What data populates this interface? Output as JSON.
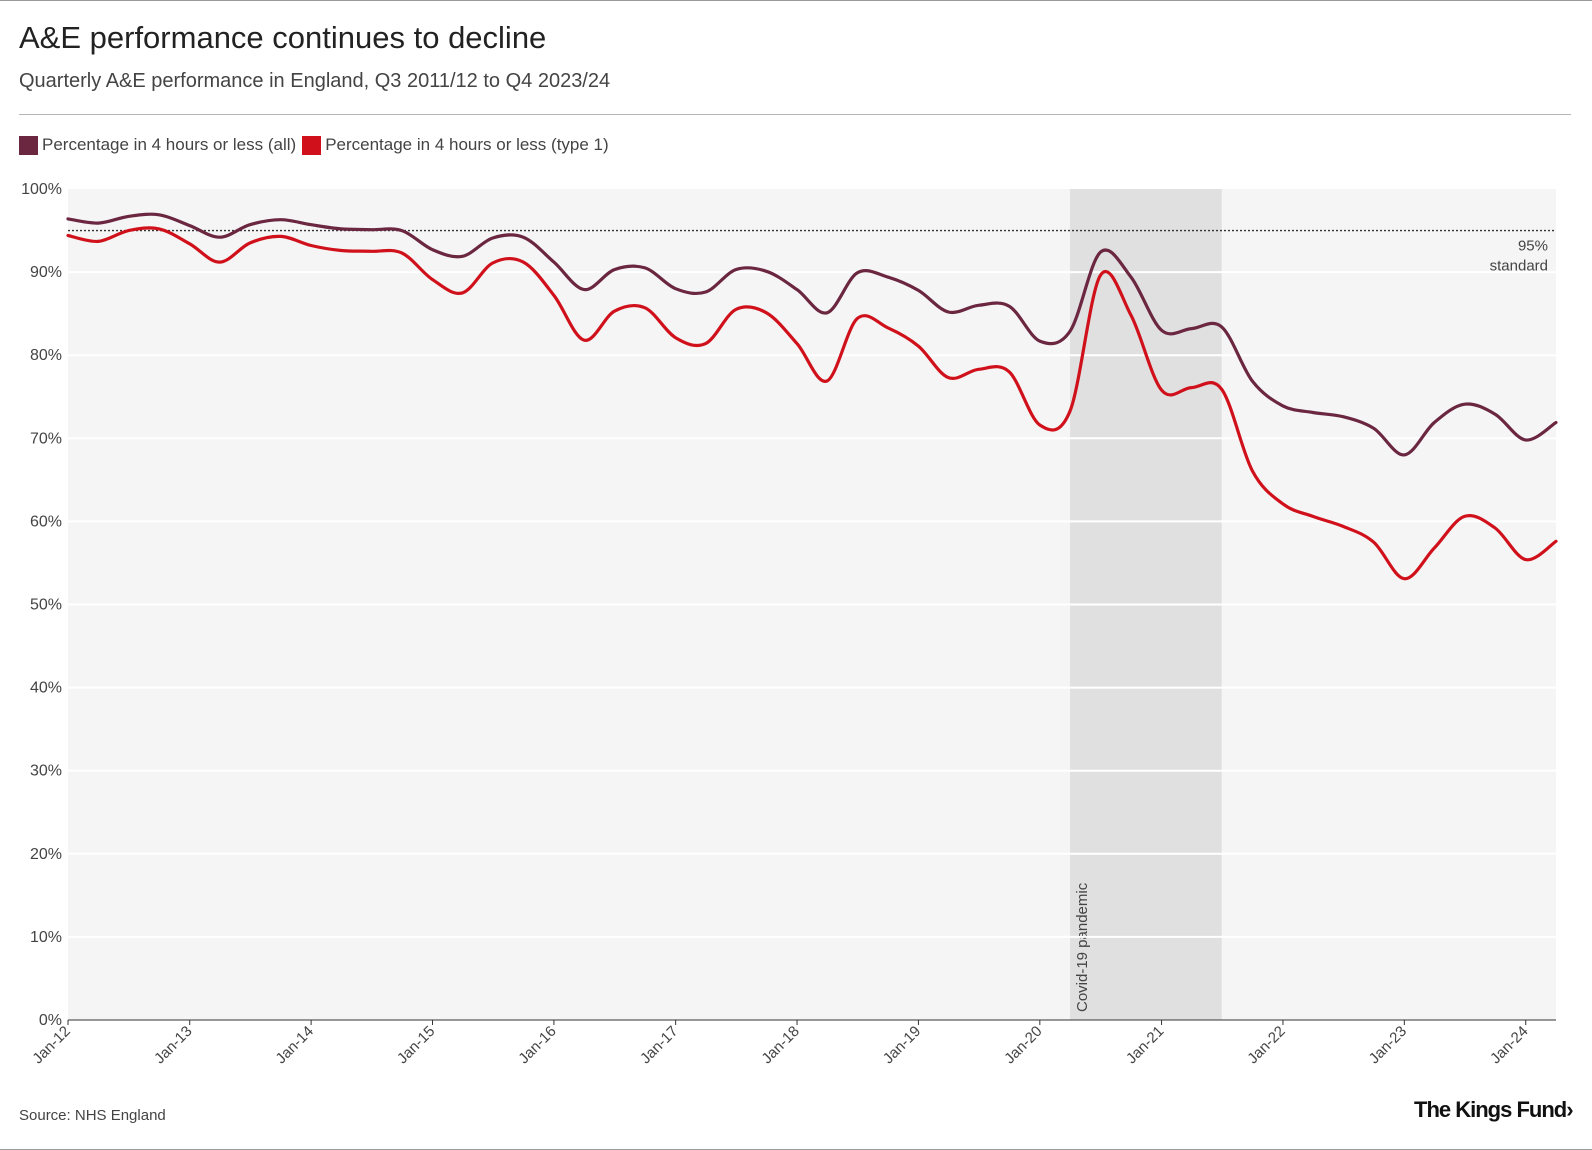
{
  "title": "A&E performance continues to decline",
  "subtitle": "Quarterly A&E performance in England, Q3 2011/12 to Q4 2023/24",
  "legend": [
    {
      "label": "Percentage in 4 hours or less (all)",
      "color": "#6b2640"
    },
    {
      "label": "Percentage in 4 hours or less (type 1)",
      "color": "#d0111b"
    }
  ],
  "source": "Source: NHS England",
  "logo": "The King's Fund›",
  "chart_data": {
    "type": "line",
    "ylim": [
      0,
      100
    ],
    "y_ticks": [
      {
        "value": 0,
        "label": "0%"
      },
      {
        "value": 10,
        "label": "10%"
      },
      {
        "value": 20,
        "label": "20%"
      },
      {
        "value": 30,
        "label": "30%"
      },
      {
        "value": 40,
        "label": "40%"
      },
      {
        "value": 50,
        "label": "50%"
      },
      {
        "value": 60,
        "label": "60%"
      },
      {
        "value": 70,
        "label": "70%"
      },
      {
        "value": 80,
        "label": "80%"
      },
      {
        "value": 90,
        "label": "90%"
      },
      {
        "value": 100,
        "label": "100%"
      }
    ],
    "x_ticks": [
      {
        "date": "2012-01-01",
        "label": "Jan-12"
      },
      {
        "date": "2013-01-01",
        "label": "Jan-13"
      },
      {
        "date": "2014-01-01",
        "label": "Jan-14"
      },
      {
        "date": "2015-01-01",
        "label": "Jan-15"
      },
      {
        "date": "2016-01-01",
        "label": "Jan-16"
      },
      {
        "date": "2017-01-01",
        "label": "Jan-17"
      },
      {
        "date": "2018-01-01",
        "label": "Jan-18"
      },
      {
        "date": "2019-01-01",
        "label": "Jan-19"
      },
      {
        "date": "2020-01-01",
        "label": "Jan-20"
      },
      {
        "date": "2021-01-01",
        "label": "Jan-21"
      },
      {
        "date": "2022-01-01",
        "label": "Jan-22"
      },
      {
        "date": "2023-01-01",
        "label": "Jan-23"
      },
      {
        "date": "2024-01-01",
        "label": "Jan-24"
      }
    ],
    "xlim": [
      "2012-01-01",
      "2024-04-01"
    ],
    "grid": true,
    "legend_position": "top-left",
    "reference_line": {
      "value": 95,
      "label_lines": [
        "95%",
        "standard"
      ]
    },
    "shaded_period": {
      "start": "2020-04-01",
      "end": "2021-07-01",
      "label": "Covid-19 pandemic"
    },
    "x": [
      "2012-01-01",
      "2012-04-01",
      "2012-07-01",
      "2012-10-01",
      "2013-01-01",
      "2013-04-01",
      "2013-07-01",
      "2013-10-01",
      "2014-01-01",
      "2014-04-01",
      "2014-07-01",
      "2014-10-01",
      "2015-01-01",
      "2015-04-01",
      "2015-07-01",
      "2015-10-01",
      "2016-01-01",
      "2016-04-01",
      "2016-07-01",
      "2016-10-01",
      "2017-01-01",
      "2017-04-01",
      "2017-07-01",
      "2017-10-01",
      "2018-01-01",
      "2018-04-01",
      "2018-07-01",
      "2018-10-01",
      "2019-01-01",
      "2019-04-01",
      "2019-07-01",
      "2019-10-01",
      "2020-01-01",
      "2020-04-01",
      "2020-07-01",
      "2020-10-01",
      "2021-01-01",
      "2021-04-01",
      "2021-07-01",
      "2021-10-01",
      "2022-01-01",
      "2022-04-01",
      "2022-07-01",
      "2022-10-01",
      "2023-01-01",
      "2023-04-01",
      "2023-07-01",
      "2023-10-01",
      "2024-01-01",
      "2024-04-01"
    ],
    "series": [
      {
        "name": "Percentage in 4 hours or less (all)",
        "color": "#6b2640",
        "values": [
          96.4,
          95.9,
          96.7,
          96.9,
          95.6,
          94.2,
          95.7,
          96.3,
          95.7,
          95.2,
          95.1,
          95.0,
          92.7,
          91.9,
          94.1,
          94.2,
          91.2,
          87.9,
          90.3,
          90.5,
          88.0,
          87.6,
          90.3,
          90.1,
          87.9,
          85.1,
          89.9,
          89.4,
          87.8,
          85.2,
          86.0,
          85.9,
          81.7,
          82.9,
          92.4,
          89.4,
          83.0,
          83.2,
          83.4,
          76.9,
          73.9,
          73.1,
          72.6,
          71.2,
          68.0,
          71.9,
          74.1,
          72.9,
          69.8,
          71.9
        ]
      },
      {
        "name": "Percentage in 4 hours or less (type 1)",
        "color": "#d0111b",
        "values": [
          94.4,
          93.7,
          95.0,
          95.2,
          93.4,
          91.2,
          93.5,
          94.3,
          93.2,
          92.6,
          92.5,
          92.3,
          89.1,
          87.5,
          91.1,
          91.2,
          87.2,
          81.8,
          85.3,
          85.7,
          82.1,
          81.4,
          85.5,
          85.1,
          81.4,
          76.9,
          84.4,
          83.3,
          81.1,
          77.3,
          78.3,
          78.0,
          71.6,
          73.3,
          89.6,
          84.8,
          75.8,
          76.1,
          75.9,
          66.1,
          62.1,
          60.6,
          59.4,
          57.5,
          53.1,
          56.8,
          60.6,
          59.2,
          55.4,
          57.6
        ]
      }
    ]
  }
}
